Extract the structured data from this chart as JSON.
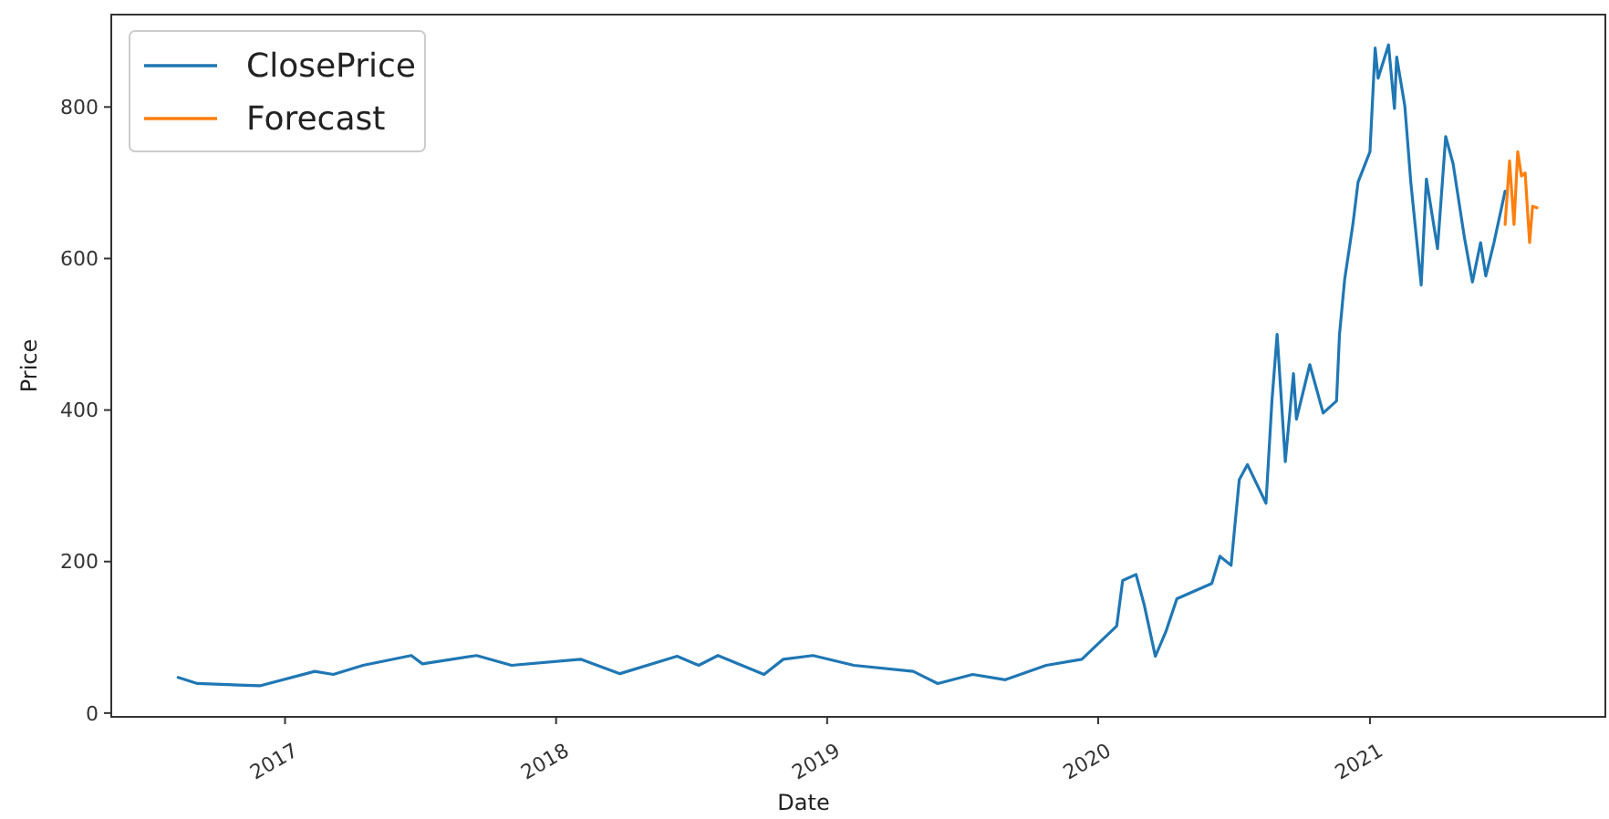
{
  "chart_data": {
    "type": "line",
    "xlabel": "Date",
    "ylabel": "Price",
    "xlim": [
      "2016-05-12",
      "2021-11-14"
    ],
    "ylim": [
      -5,
      922
    ],
    "xticks": [
      {
        "value": "2017-01-01",
        "label": "2017"
      },
      {
        "value": "2018-01-01",
        "label": "2018"
      },
      {
        "value": "2019-01-01",
        "label": "2019"
      },
      {
        "value": "2020-01-01",
        "label": "2020"
      },
      {
        "value": "2021-01-01",
        "label": "2021"
      }
    ],
    "yticks": [
      0,
      200,
      400,
      600,
      800
    ],
    "legend": "top left",
    "grid": false,
    "marker": "none",
    "line_style": "solid",
    "series": [
      {
        "name": "ClosePrice",
        "color": "#1f77b4",
        "x": [
          "2016-08-10",
          "2016-09-05",
          "2016-11-28",
          "2017-02-10",
          "2017-03-07",
          "2017-04-16",
          "2017-06-20",
          "2017-07-05",
          "2017-09-16",
          "2017-11-02",
          "2018-02-03",
          "2018-03-28",
          "2018-06-13",
          "2018-07-12",
          "2018-08-07",
          "2018-10-08",
          "2018-11-03",
          "2018-12-13",
          "2019-02-06",
          "2019-04-27",
          "2019-05-30",
          "2019-07-16",
          "2019-08-29",
          "2019-10-23",
          "2019-12-10",
          "2020-01-26",
          "2020-02-03",
          "2020-02-21",
          "2020-03-03",
          "2020-03-18",
          "2020-04-01",
          "2020-04-16",
          "2020-06-02",
          "2020-06-13",
          "2020-06-28",
          "2020-07-09",
          "2020-07-20",
          "2020-08-14",
          "2020-08-22",
          "2020-08-29",
          "2020-09-09",
          "2020-09-20",
          "2020-09-24",
          "2020-10-12",
          "2020-10-30",
          "2020-11-17",
          "2020-11-21",
          "2020-11-28",
          "2020-12-09",
          "2020-12-16",
          "2021-01-01",
          "2021-01-08",
          "2021-01-12",
          "2021-01-26",
          "2021-02-03",
          "2021-02-06",
          "2021-02-17",
          "2021-02-25",
          "2021-03-11",
          "2021-03-18",
          "2021-04-02",
          "2021-04-13",
          "2021-04-23",
          "2021-05-08",
          "2021-05-19",
          "2021-05-30",
          "2021-06-06",
          "2021-06-17",
          "2021-07-02"
        ],
        "values": [
          47,
          39,
          36,
          55,
          51,
          63,
          76,
          65,
          76,
          63,
          71,
          52,
          75,
          63,
          76,
          51,
          71,
          76,
          63,
          55,
          39,
          51,
          44,
          63,
          71,
          115,
          175,
          183,
          143,
          75,
          107,
          151,
          171,
          207,
          195,
          308,
          328,
          277,
          412,
          500,
          332,
          448,
          388,
          460,
          396,
          412,
          500,
          573,
          645,
          701,
          741,
          878,
          838,
          882,
          798,
          866,
          801,
          701,
          565,
          705,
          613,
          761,
          725,
          629,
          569,
          621,
          577,
          621,
          689
        ]
      },
      {
        "name": "Forecast",
        "color": "#ff7f0e",
        "x": [
          "2021-07-02",
          "2021-07-08",
          "2021-07-14",
          "2021-07-19",
          "2021-07-24",
          "2021-07-29",
          "2021-08-04",
          "2021-08-08",
          "2021-08-14"
        ],
        "values": [
          645,
          729,
          645,
          741,
          709,
          713,
          621,
          669,
          667
        ]
      }
    ]
  }
}
